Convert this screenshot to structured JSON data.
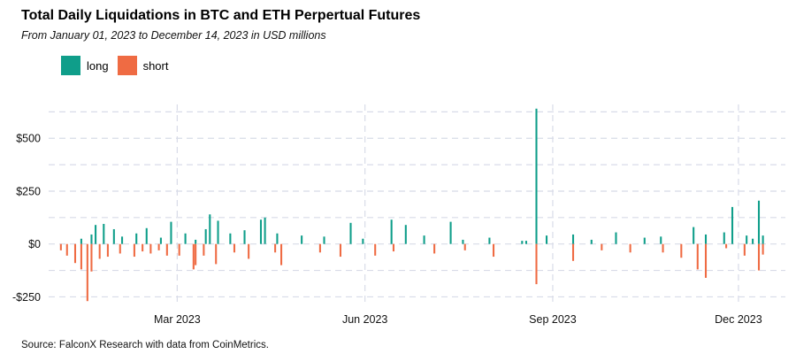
{
  "colors": {
    "long": "#0f9e8a",
    "short": "#ef6b43",
    "grid": "#d8dbe8"
  },
  "chart_data": {
    "type": "bar",
    "title": "Total Daily Liquidations in BTC and ETH Perpertual Futures",
    "subtitle": "From January 01, 2023 to December 14, 2023 in USD millions",
    "source": "FalconX Research with data from CoinMetrics.",
    "legend": {
      "position": "top-left",
      "entries": [
        "long",
        "short"
      ]
    },
    "xlabel": "",
    "ylabel": "",
    "ylim": [
      -290,
      660
    ],
    "yticks": [
      -250,
      0,
      250,
      500
    ],
    "yticklabels": [
      "-$250",
      "$0",
      "$250",
      "$500"
    ],
    "xlim": [
      "2022-12-28",
      "2023-12-24"
    ],
    "xticks": [
      "2023-03-01",
      "2023-06-01",
      "2023-09-01",
      "2023-12-01"
    ],
    "xticklabels": [
      "Mar 2023",
      "Jun 2023",
      "Sep 2023",
      "Dec 2023"
    ],
    "grid": true,
    "series": [
      {
        "name": "long",
        "points": [
          [
            "2023-01-13",
            25
          ],
          [
            "2023-01-18",
            45
          ],
          [
            "2023-01-20",
            90
          ],
          [
            "2023-01-24",
            95
          ],
          [
            "2023-01-29",
            70
          ],
          [
            "2023-02-02",
            35
          ],
          [
            "2023-02-09",
            50
          ],
          [
            "2023-02-14",
            75
          ],
          [
            "2023-02-21",
            30
          ],
          [
            "2023-02-26",
            105
          ],
          [
            "2023-03-05",
            50
          ],
          [
            "2023-03-10",
            20
          ],
          [
            "2023-03-15",
            70
          ],
          [
            "2023-03-17",
            140
          ],
          [
            "2023-03-21",
            110
          ],
          [
            "2023-03-27",
            50
          ],
          [
            "2023-04-03",
            65
          ],
          [
            "2023-04-11",
            115
          ],
          [
            "2023-04-13",
            125
          ],
          [
            "2023-04-19",
            50
          ],
          [
            "2023-05-01",
            40
          ],
          [
            "2023-05-12",
            35
          ],
          [
            "2023-05-25",
            100
          ],
          [
            "2023-05-31",
            25
          ],
          [
            "2023-06-14",
            115
          ],
          [
            "2023-06-21",
            90
          ],
          [
            "2023-06-30",
            40
          ],
          [
            "2023-07-13",
            105
          ],
          [
            "2023-07-19",
            20
          ],
          [
            "2023-08-01",
            30
          ],
          [
            "2023-08-17",
            15
          ],
          [
            "2023-08-19",
            15
          ],
          [
            "2023-08-24",
            640
          ],
          [
            "2023-08-29",
            40
          ],
          [
            "2023-09-11",
            45
          ],
          [
            "2023-09-20",
            20
          ],
          [
            "2023-10-02",
            55
          ],
          [
            "2023-10-16",
            30
          ],
          [
            "2023-10-24",
            35
          ],
          [
            "2023-11-09",
            80
          ],
          [
            "2023-11-15",
            45
          ],
          [
            "2023-11-24",
            55
          ],
          [
            "2023-11-28",
            175
          ],
          [
            "2023-12-05",
            40
          ],
          [
            "2023-12-08",
            25
          ],
          [
            "2023-12-11",
            205
          ],
          [
            "2023-12-13",
            40
          ]
        ]
      },
      {
        "name": "short",
        "points": [
          [
            "2023-01-03",
            -30
          ],
          [
            "2023-01-06",
            -55
          ],
          [
            "2023-01-10",
            -90
          ],
          [
            "2023-01-13",
            -120
          ],
          [
            "2023-01-16",
            -270
          ],
          [
            "2023-01-18",
            -130
          ],
          [
            "2023-01-22",
            -70
          ],
          [
            "2023-01-26",
            -60
          ],
          [
            "2023-02-01",
            -45
          ],
          [
            "2023-02-08",
            -60
          ],
          [
            "2023-02-12",
            -35
          ],
          [
            "2023-02-16",
            -45
          ],
          [
            "2023-02-20",
            -30
          ],
          [
            "2023-02-24",
            -55
          ],
          [
            "2023-03-02",
            -55
          ],
          [
            "2023-03-09",
            -120
          ],
          [
            "2023-03-10",
            -100
          ],
          [
            "2023-03-14",
            -55
          ],
          [
            "2023-03-20",
            -95
          ],
          [
            "2023-03-29",
            -40
          ],
          [
            "2023-04-05",
            -70
          ],
          [
            "2023-04-18",
            -40
          ],
          [
            "2023-04-21",
            -100
          ],
          [
            "2023-05-10",
            -40
          ],
          [
            "2023-05-20",
            -60
          ],
          [
            "2023-06-06",
            -55
          ],
          [
            "2023-06-15",
            -35
          ],
          [
            "2023-07-05",
            -45
          ],
          [
            "2023-07-20",
            -30
          ],
          [
            "2023-08-03",
            -60
          ],
          [
            "2023-08-24",
            -190
          ],
          [
            "2023-09-11",
            -80
          ],
          [
            "2023-09-25",
            -30
          ],
          [
            "2023-10-09",
            -40
          ],
          [
            "2023-10-25",
            -40
          ],
          [
            "2023-11-03",
            -65
          ],
          [
            "2023-11-11",
            -120
          ],
          [
            "2023-11-15",
            -160
          ],
          [
            "2023-11-25",
            -20
          ],
          [
            "2023-12-04",
            -55
          ],
          [
            "2023-12-11",
            -125
          ],
          [
            "2023-12-13",
            -50
          ]
        ]
      }
    ]
  }
}
